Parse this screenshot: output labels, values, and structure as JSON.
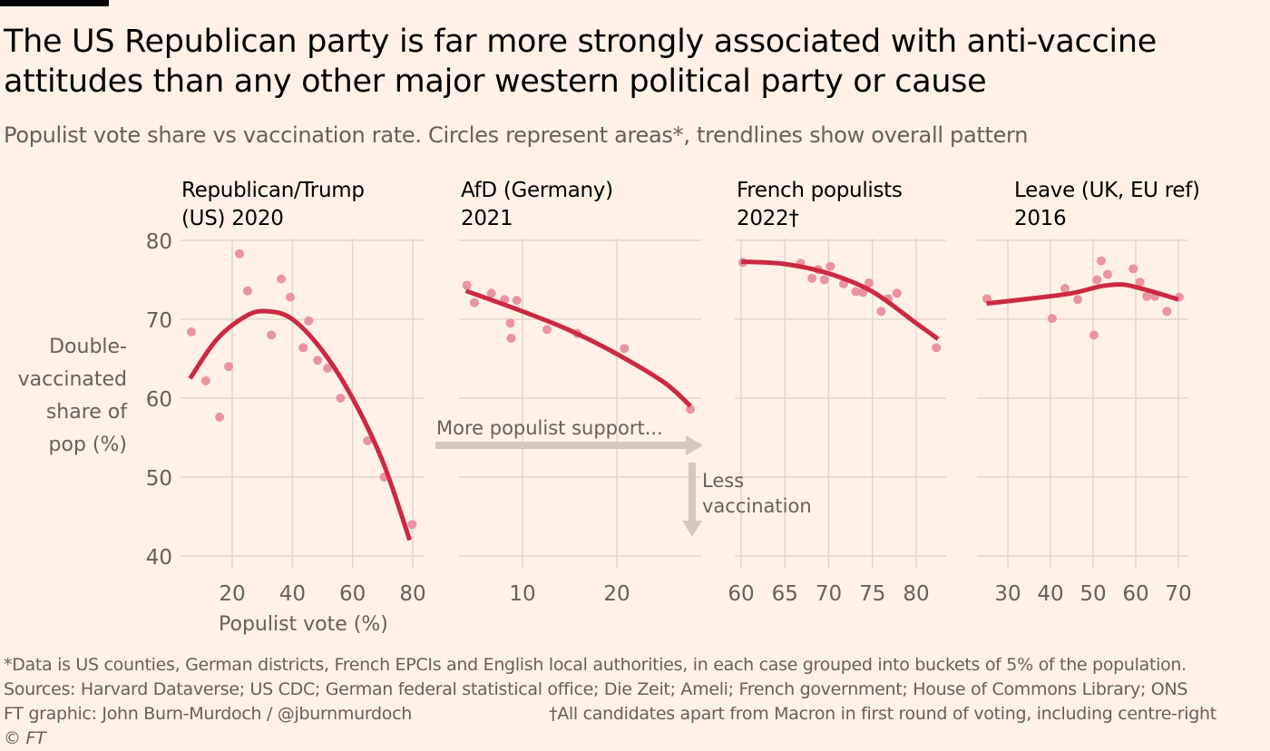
{
  "title": "The US Republican party is far more strongly associated with anti-vaccine attitudes than any other major western political party or cause",
  "subtitle": "Populist vote share vs vaccination rate. Circles represent areas*, trendlines show overall pattern",
  "y_axis_label": "Double-\nvaccinated\nshare of\npop (%)",
  "x_axis_label": "Populist vote (%)",
  "annotations": {
    "more_support": "More populist support...",
    "less_vaccination_1": "Less",
    "less_vaccination_2": "vaccination"
  },
  "colors": {
    "background": "#fff1e5",
    "points": "#e8899a",
    "trendline": "#cc2940",
    "grid": "#e3d6cb",
    "arrow": "#d3c8be"
  },
  "footer": {
    "note": "*Data is US counties, German districts, French EPCIs and English local authorities, in each case grouped into buckets of 5% of the population.",
    "sources": "Sources: Harvard Dataverse; US CDC; German federal statistical office; Die Zeit; Ameli; French government; House of Commons Library; ONS",
    "credit": "FT graphic: John Burn-Murdoch / @jburnmurdoch",
    "dagger_note": "†All candidates apart from Macron in first round of voting, including centre-right",
    "copyright": "© FT"
  },
  "chart_data": [
    {
      "type": "scatter",
      "title": "Republican/Trump\n(US) 2020",
      "xlabel": "Populist vote (%)",
      "ylabel": "Double-vaccinated share of pop (%)",
      "xticks": [
        20,
        40,
        60,
        80
      ],
      "yticks": [
        40,
        50,
        60,
        70,
        80
      ],
      "ylim": [
        40,
        80
      ],
      "grid": true,
      "points": [
        [
          6.4,
          68.4
        ],
        [
          22.4,
          78.3
        ],
        [
          25.1,
          73.6
        ],
        [
          36.3,
          75.1
        ],
        [
          39.3,
          72.8
        ],
        [
          45.4,
          69.8
        ],
        [
          33,
          68
        ],
        [
          43.6,
          66.4
        ],
        [
          48.4,
          64.8
        ],
        [
          51.7,
          63.8
        ],
        [
          18.8,
          64
        ],
        [
          11.2,
          62.2
        ],
        [
          15.8,
          57.6
        ],
        [
          56,
          60
        ],
        [
          65,
          54.6
        ],
        [
          70.5,
          50
        ],
        [
          79.8,
          44
        ]
      ],
      "trendline": [
        [
          6,
          62.5
        ],
        [
          15,
          67.5
        ],
        [
          25,
          70.5
        ],
        [
          32,
          71
        ],
        [
          40,
          70
        ],
        [
          50,
          66
        ],
        [
          60,
          60
        ],
        [
          70,
          52
        ],
        [
          79,
          42
        ]
      ]
    },
    {
      "type": "scatter",
      "title": "AfD (Germany)\n2021",
      "xticks": [
        10,
        20
      ],
      "ylim": [
        40,
        80
      ],
      "grid": true,
      "points": [
        [
          4.1,
          74.3
        ],
        [
          4.9,
          72.1
        ],
        [
          6.7,
          73.3
        ],
        [
          8.1,
          72.5
        ],
        [
          9.4,
          72.4
        ],
        [
          8.7,
          69.5
        ],
        [
          8.8,
          67.6
        ],
        [
          12.6,
          68.7
        ],
        [
          15.8,
          68.2
        ],
        [
          20.8,
          66.3
        ],
        [
          27.8,
          58.6
        ]
      ],
      "trendline": [
        [
          4,
          73.6
        ],
        [
          10,
          71
        ],
        [
          15,
          68.6
        ],
        [
          20,
          65.6
        ],
        [
          25,
          62
        ],
        [
          27.8,
          59
        ]
      ]
    },
    {
      "type": "scatter",
      "title": "French populists\n2022†",
      "xticks": [
        60,
        65,
        70,
        75,
        80
      ],
      "ylim": [
        40,
        80
      ],
      "grid": true,
      "points": [
        [
          60.2,
          77.2
        ],
        [
          66.8,
          77.1
        ],
        [
          68.8,
          76.3
        ],
        [
          70.2,
          76.7
        ],
        [
          68.1,
          75.2
        ],
        [
          69.5,
          75
        ],
        [
          71.7,
          74.5
        ],
        [
          73.1,
          73.5
        ],
        [
          73.9,
          73.4
        ],
        [
          74.6,
          74.6
        ],
        [
          76.8,
          72.6
        ],
        [
          77.8,
          73.3
        ],
        [
          76,
          71
        ],
        [
          82.3,
          66.4
        ]
      ],
      "trendline": [
        [
          60,
          77.3
        ],
        [
          65,
          77
        ],
        [
          70,
          75.8
        ],
        [
          75,
          73.5
        ],
        [
          80,
          69.5
        ],
        [
          82.5,
          67.5
        ]
      ]
    },
    {
      "type": "scatter",
      "title": "Leave (UK, EU ref)\n2016",
      "xticks": [
        30,
        40,
        50,
        60,
        70
      ],
      "ylim": [
        40,
        80
      ],
      "grid": true,
      "points": [
        [
          25.1,
          72.6
        ],
        [
          40.4,
          70.1
        ],
        [
          43.4,
          73.9
        ],
        [
          46.4,
          72.5
        ],
        [
          50.2,
          68
        ],
        [
          50.9,
          75
        ],
        [
          51.9,
          77.4
        ],
        [
          53.4,
          75.7
        ],
        [
          59.4,
          76.4
        ],
        [
          61,
          74.7
        ],
        [
          62.6,
          72.9
        ],
        [
          64.5,
          72.9
        ],
        [
          67.3,
          71
        ],
        [
          70.2,
          72.8
        ]
      ],
      "trendline": [
        [
          25,
          72
        ],
        [
          35,
          72.6
        ],
        [
          45,
          73.3
        ],
        [
          52,
          74.2
        ],
        [
          57,
          74.4
        ],
        [
          62,
          73.8
        ],
        [
          67,
          73
        ],
        [
          70,
          72.5
        ]
      ]
    }
  ]
}
